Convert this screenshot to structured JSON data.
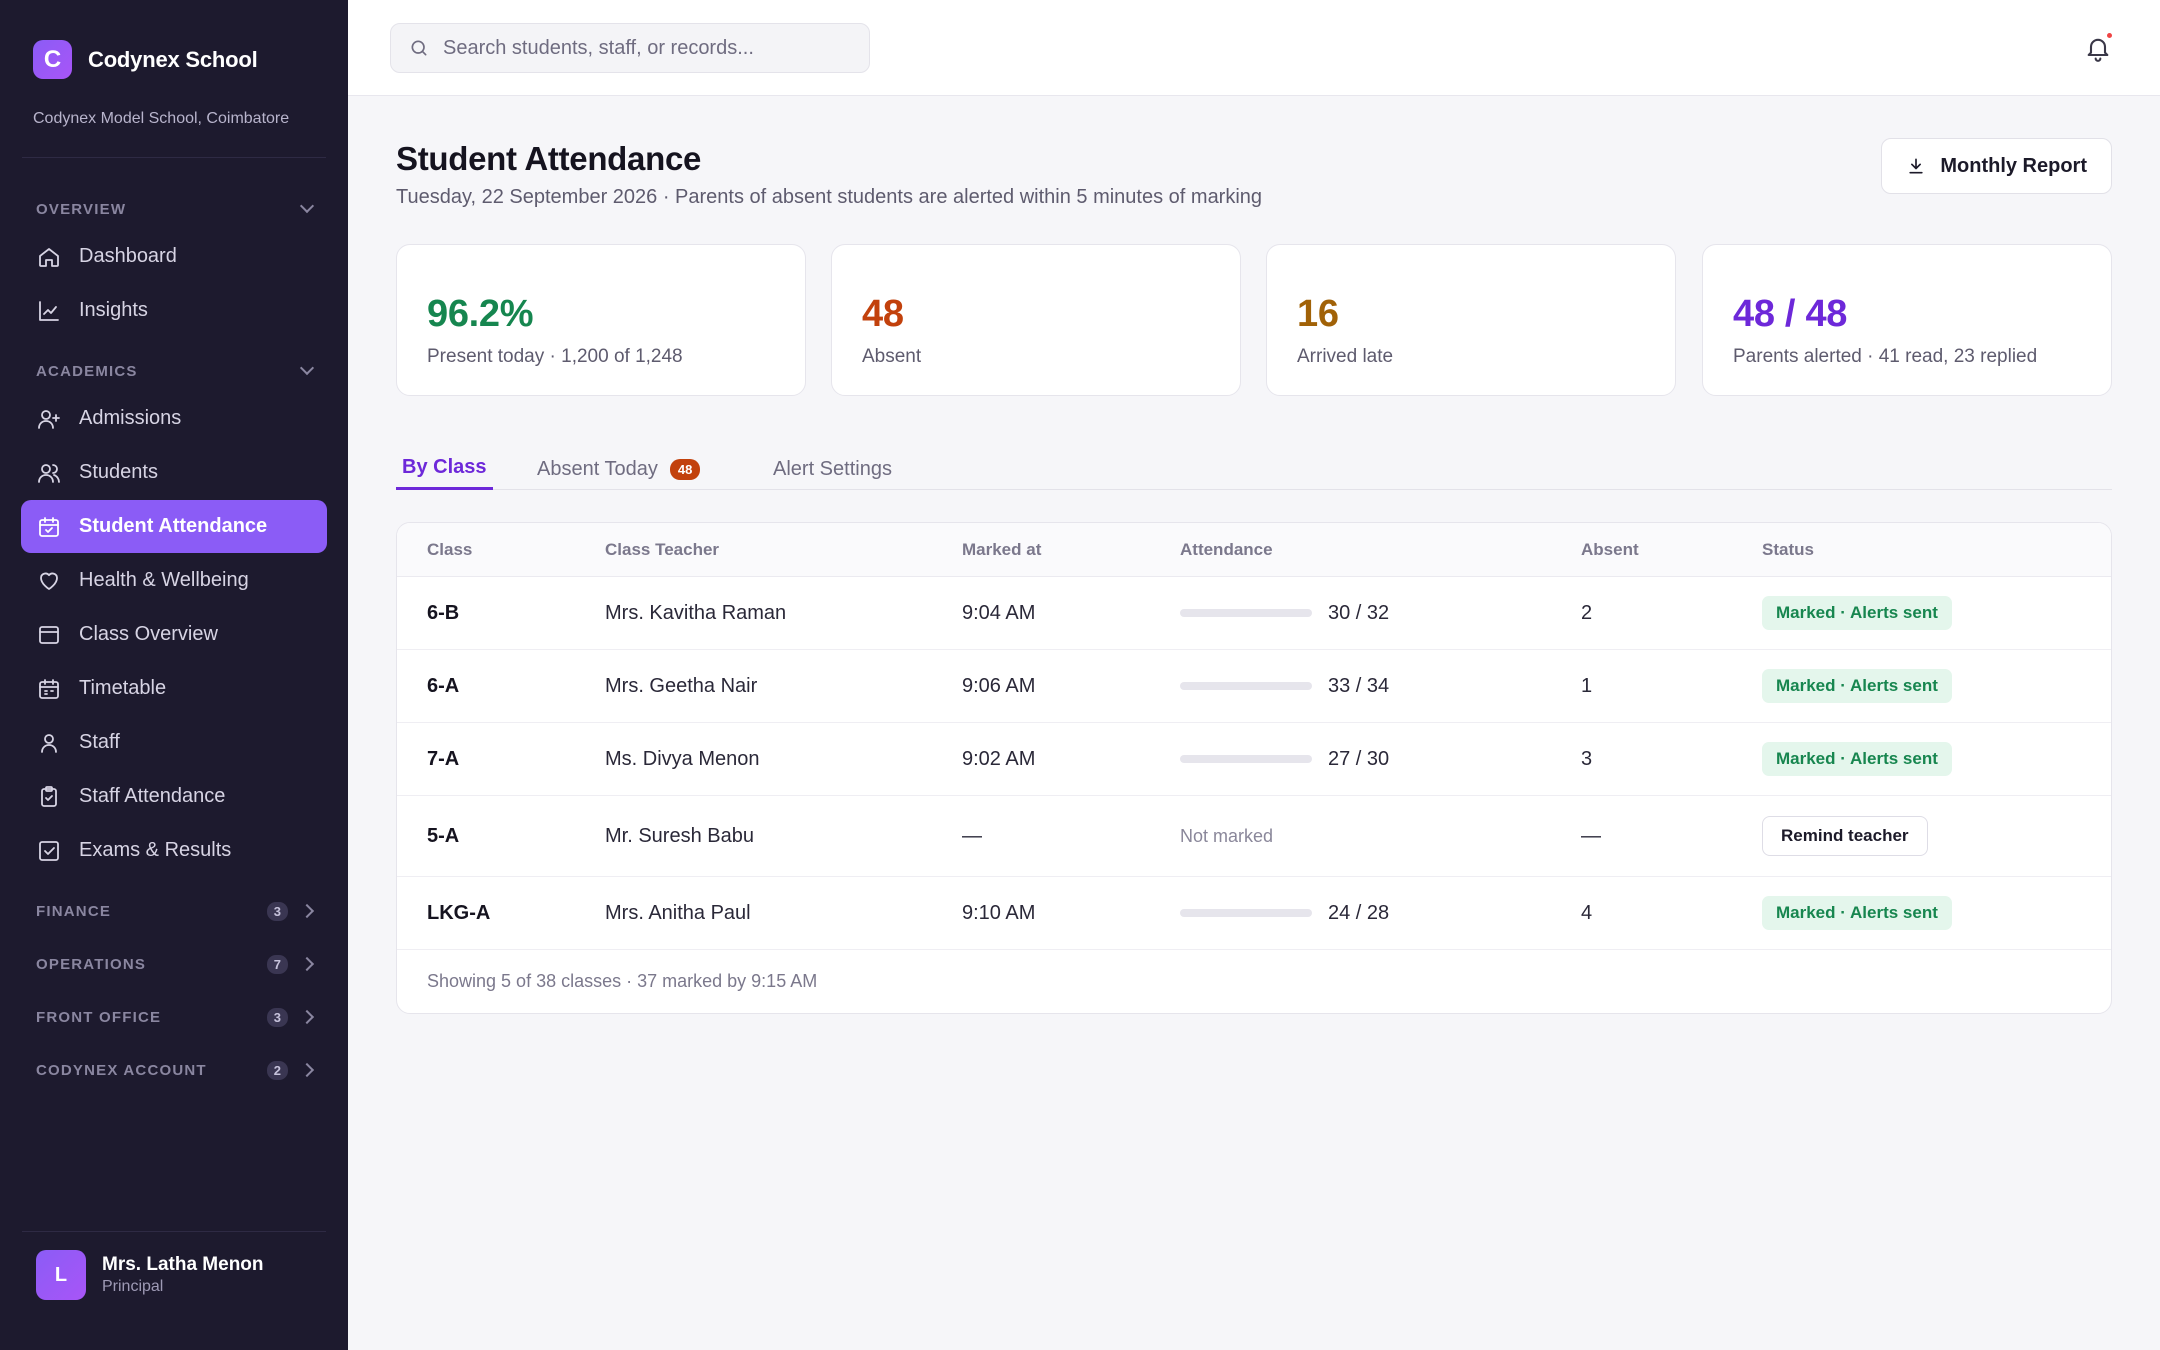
{
  "brand": {
    "logo_letter": "C",
    "name": "Codynex School",
    "school": "Codynex Model School, Coimbatore"
  },
  "sidebar": {
    "groups": [
      {
        "label": "OVERVIEW",
        "items": [
          {
            "label": "Dashboard",
            "icon": "home-icon"
          },
          {
            "label": "Insights",
            "icon": "chart-line-icon"
          }
        ]
      },
      {
        "label": "ACADEMICS",
        "items": [
          {
            "label": "Admissions",
            "icon": "user-plus-icon"
          },
          {
            "label": "Students",
            "icon": "users-icon"
          },
          {
            "label": "Student Attendance",
            "icon": "calendar-check-icon",
            "active": true
          },
          {
            "label": "Health & Wellbeing",
            "icon": "heart-icon"
          },
          {
            "label": "Class Overview",
            "icon": "layout-icon"
          },
          {
            "label": "Timetable",
            "icon": "calendar-icon"
          },
          {
            "label": "Staff",
            "icon": "user-icon"
          },
          {
            "label": "Staff Attendance",
            "icon": "clipboard-check-icon"
          },
          {
            "label": "Exams & Results",
            "icon": "checkbox-icon"
          }
        ]
      }
    ],
    "collapsed": [
      {
        "label": "FINANCE",
        "count": "3"
      },
      {
        "label": "OPERATIONS",
        "count": "7"
      },
      {
        "label": "FRONT OFFICE",
        "count": "3"
      },
      {
        "label": "CODYNEX ACCOUNT",
        "count": "2"
      }
    ],
    "user": {
      "initial": "L",
      "name": "Mrs. Latha Menon",
      "role": "Principal"
    }
  },
  "topbar": {
    "search_placeholder": "Search students, staff, or records..."
  },
  "page": {
    "title": "Student Attendance",
    "subtitle": "Tuesday, 22 September 2026 · Parents of absent students are alerted within 5 minutes of marking",
    "report_button": "Monthly Report"
  },
  "kpis": [
    {
      "value": "96.2%",
      "label": "Present today · 1,200 of 1,248",
      "color": "#16864f"
    },
    {
      "value": "48",
      "label": "Absent",
      "color": "#c2410c"
    },
    {
      "value": "16",
      "label": "Arrived late",
      "color": "#a16207"
    },
    {
      "value": "48 / 48",
      "label": "Parents alerted · 41 read, 23 replied",
      "color": "#6d28d9"
    }
  ],
  "tabs": [
    {
      "label": "By Class",
      "active": true
    },
    {
      "label": "Absent Today",
      "badge": "48"
    },
    {
      "label": "Alert Settings"
    }
  ],
  "table": {
    "columns": [
      "Class",
      "Class Teacher",
      "Marked at",
      "Attendance",
      "Absent",
      "Status"
    ],
    "rows": [
      {
        "class": "6-B",
        "teacher": "Mrs. Kavitha Raman",
        "marked_at": "9:04 AM",
        "attendance": "30 / 32",
        "present": 30,
        "total": 32,
        "absent": "2",
        "status": "Marked · Alerts sent"
      },
      {
        "class": "6-A",
        "teacher": "Mrs. Geetha Nair",
        "marked_at": "9:06 AM",
        "attendance": "33 / 34",
        "present": 33,
        "total": 34,
        "absent": "1",
        "status": "Marked · Alerts sent"
      },
      {
        "class": "7-A",
        "teacher": "Ms. Divya Menon",
        "marked_at": "9:02 AM",
        "attendance": "27 / 30",
        "present": 27,
        "total": 30,
        "absent": "3",
        "status": "Marked · Alerts sent"
      },
      {
        "class": "5-A",
        "teacher": "Mr. Suresh Babu",
        "marked_at": "—",
        "attendance": "Not marked",
        "present": null,
        "total": null,
        "absent": "—",
        "status": "Remind teacher",
        "action": true
      },
      {
        "class": "LKG-A",
        "teacher": "Mrs. Anitha Paul",
        "marked_at": "9:10 AM",
        "attendance": "24 / 28",
        "present": 24,
        "total": 28,
        "absent": "4",
        "status": "Marked · Alerts sent"
      }
    ],
    "footer": "Showing 5 of 38 classes · 37 marked by 9:15 AM"
  }
}
